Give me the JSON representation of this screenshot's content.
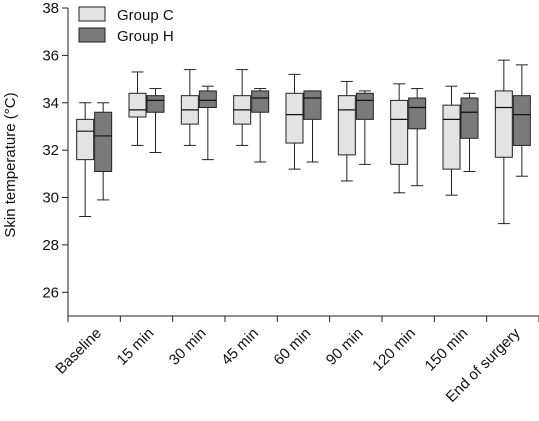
{
  "chart_data": {
    "type": "box",
    "ylabel": "Skin temperature (°C)",
    "ylim": [
      25,
      38
    ],
    "yticks": [
      "26",
      "28",
      "30",
      "32",
      "34",
      "36",
      "38"
    ],
    "categories": [
      "Baseline",
      "15 min",
      "30 min",
      "45 min",
      "60 min",
      "90 min",
      "120 min",
      "150 min",
      "End of surgery"
    ],
    "legend_position": "top-left",
    "series": [
      {
        "name": "Group C",
        "color": "#e3e3e3",
        "boxes": [
          {
            "min": 29.2,
            "q1": 31.6,
            "median": 32.8,
            "q3": 33.3,
            "max": 34.0
          },
          {
            "min": 32.2,
            "q1": 33.4,
            "median": 33.7,
            "q3": 34.4,
            "max": 35.3
          },
          {
            "min": 32.2,
            "q1": 33.1,
            "median": 33.7,
            "q3": 34.3,
            "max": 35.4
          },
          {
            "min": 32.2,
            "q1": 33.1,
            "median": 33.7,
            "q3": 34.3,
            "max": 35.4
          },
          {
            "min": 31.2,
            "q1": 32.3,
            "median": 33.5,
            "q3": 34.4,
            "max": 35.2
          },
          {
            "min": 30.7,
            "q1": 31.8,
            "median": 33.7,
            "q3": 34.3,
            "max": 34.9
          },
          {
            "min": 30.2,
            "q1": 31.4,
            "median": 33.3,
            "q3": 34.1,
            "max": 34.8
          },
          {
            "min": 30.1,
            "q1": 31.2,
            "median": 33.3,
            "q3": 33.9,
            "max": 34.7
          },
          {
            "min": 28.9,
            "q1": 31.7,
            "median": 33.8,
            "q3": 34.5,
            "max": 35.8
          }
        ]
      },
      {
        "name": "Group H",
        "color": "#7a7a7a",
        "boxes": [
          {
            "min": 29.9,
            "q1": 31.1,
            "median": 32.6,
            "q3": 33.6,
            "max": 34.0
          },
          {
            "min": 31.9,
            "q1": 33.6,
            "median": 34.1,
            "q3": 34.3,
            "max": 34.6
          },
          {
            "min": 31.6,
            "q1": 33.8,
            "median": 34.1,
            "q3": 34.5,
            "max": 34.7
          },
          {
            "min": 31.5,
            "q1": 33.6,
            "median": 34.2,
            "q3": 34.5,
            "max": 34.6
          },
          {
            "min": 31.5,
            "q1": 33.3,
            "median": 34.2,
            "q3": 34.5,
            "max": 34.5
          },
          {
            "min": 31.4,
            "q1": 33.3,
            "median": 34.1,
            "q3": 34.4,
            "max": 34.5
          },
          {
            "min": 30.5,
            "q1": 32.9,
            "median": 33.8,
            "q3": 34.2,
            "max": 34.6
          },
          {
            "min": 31.1,
            "q1": 32.5,
            "median": 33.6,
            "q3": 34.2,
            "max": 34.4
          },
          {
            "min": 30.9,
            "q1": 32.2,
            "median": 33.5,
            "q3": 34.3,
            "max": 35.6
          }
        ]
      }
    ]
  }
}
